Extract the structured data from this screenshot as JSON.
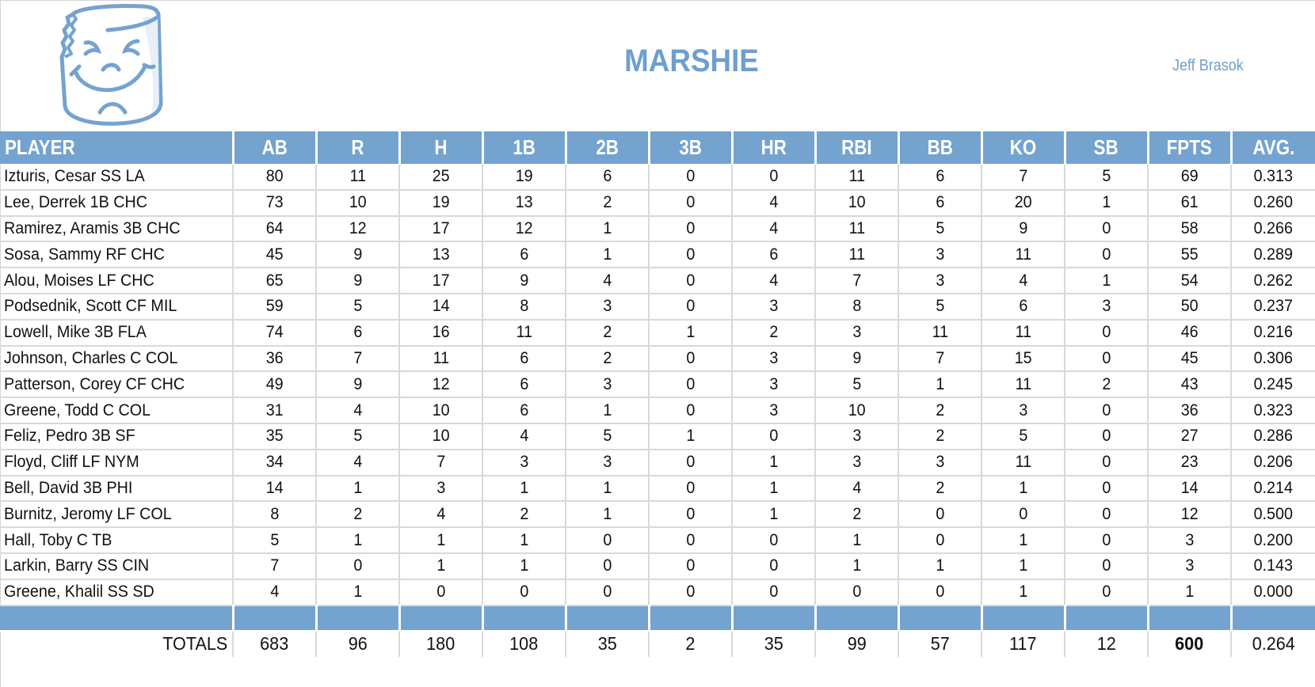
{
  "header": {
    "team_name": "MARSHIE",
    "owner_name": "Jeff Brasok",
    "logo_icon": "marshmallow-face-logo",
    "colors": {
      "accent": "#74a3cf",
      "title": "#6e9fcf",
      "grid": "#d9d9d9",
      "text": "#111111"
    }
  },
  "table": {
    "columns": [
      "PLAYER",
      "AB",
      "R",
      "H",
      "1B",
      "2B",
      "3B",
      "HR",
      "RBI",
      "BB",
      "KO",
      "SB",
      "FPTS",
      "AVG."
    ],
    "rows": [
      [
        "Izturis, Cesar SS LA",
        "80",
        "11",
        "25",
        "19",
        "6",
        "0",
        "0",
        "11",
        "6",
        "7",
        "5",
        "69",
        "0.313"
      ],
      [
        "Lee, Derrek 1B CHC",
        "73",
        "10",
        "19",
        "13",
        "2",
        "0",
        "4",
        "10",
        "6",
        "20",
        "1",
        "61",
        "0.260"
      ],
      [
        "Ramirez, Aramis 3B CHC",
        "64",
        "12",
        "17",
        "12",
        "1",
        "0",
        "4",
        "11",
        "5",
        "9",
        "0",
        "58",
        "0.266"
      ],
      [
        "Sosa, Sammy RF CHC",
        "45",
        "9",
        "13",
        "6",
        "1",
        "0",
        "6",
        "11",
        "3",
        "11",
        "0",
        "55",
        "0.289"
      ],
      [
        "Alou, Moises LF CHC",
        "65",
        "9",
        "17",
        "9",
        "4",
        "0",
        "4",
        "7",
        "3",
        "4",
        "1",
        "54",
        "0.262"
      ],
      [
        "Podsednik, Scott CF MIL",
        "59",
        "5",
        "14",
        "8",
        "3",
        "0",
        "3",
        "8",
        "5",
        "6",
        "3",
        "50",
        "0.237"
      ],
      [
        "Lowell, Mike 3B FLA",
        "74",
        "6",
        "16",
        "11",
        "2",
        "1",
        "2",
        "3",
        "11",
        "11",
        "0",
        "46",
        "0.216"
      ],
      [
        "Johnson, Charles C COL",
        "36",
        "7",
        "11",
        "6",
        "2",
        "0",
        "3",
        "9",
        "7",
        "15",
        "0",
        "45",
        "0.306"
      ],
      [
        "Patterson, Corey CF CHC",
        "49",
        "9",
        "12",
        "6",
        "3",
        "0",
        "3",
        "5",
        "1",
        "11",
        "2",
        "43",
        "0.245"
      ],
      [
        "Greene, Todd C COL",
        "31",
        "4",
        "10",
        "6",
        "1",
        "0",
        "3",
        "10",
        "2",
        "3",
        "0",
        "36",
        "0.323"
      ],
      [
        "Feliz, Pedro 3B SF",
        "35",
        "5",
        "10",
        "4",
        "5",
        "1",
        "0",
        "3",
        "2",
        "5",
        "0",
        "27",
        "0.286"
      ],
      [
        "Floyd, Cliff LF NYM",
        "34",
        "4",
        "7",
        "3",
        "3",
        "0",
        "1",
        "3",
        "3",
        "11",
        "0",
        "23",
        "0.206"
      ],
      [
        "Bell, David 3B PHI",
        "14",
        "1",
        "3",
        "1",
        "1",
        "0",
        "1",
        "4",
        "2",
        "1",
        "0",
        "14",
        "0.214"
      ],
      [
        "Burnitz, Jeromy LF COL",
        "8",
        "2",
        "4",
        "2",
        "1",
        "0",
        "1",
        "2",
        "0",
        "0",
        "0",
        "12",
        "0.500"
      ],
      [
        "Hall, Toby C TB",
        "5",
        "1",
        "1",
        "1",
        "0",
        "0",
        "0",
        "1",
        "0",
        "1",
        "0",
        "3",
        "0.200"
      ],
      [
        "Larkin, Barry SS CIN",
        "7",
        "0",
        "1",
        "1",
        "0",
        "0",
        "0",
        "1",
        "1",
        "1",
        "0",
        "3",
        "0.143"
      ],
      [
        "Greene, Khalil SS SD",
        "4",
        "1",
        "0",
        "0",
        "0",
        "0",
        "0",
        "0",
        "0",
        "1",
        "0",
        "1",
        "0.000"
      ]
    ],
    "totals": [
      "TOTALS",
      "683",
      "96",
      "180",
      "108",
      "35",
      "2",
      "35",
      "99",
      "57",
      "117",
      "12",
      "600",
      "0.264"
    ]
  }
}
